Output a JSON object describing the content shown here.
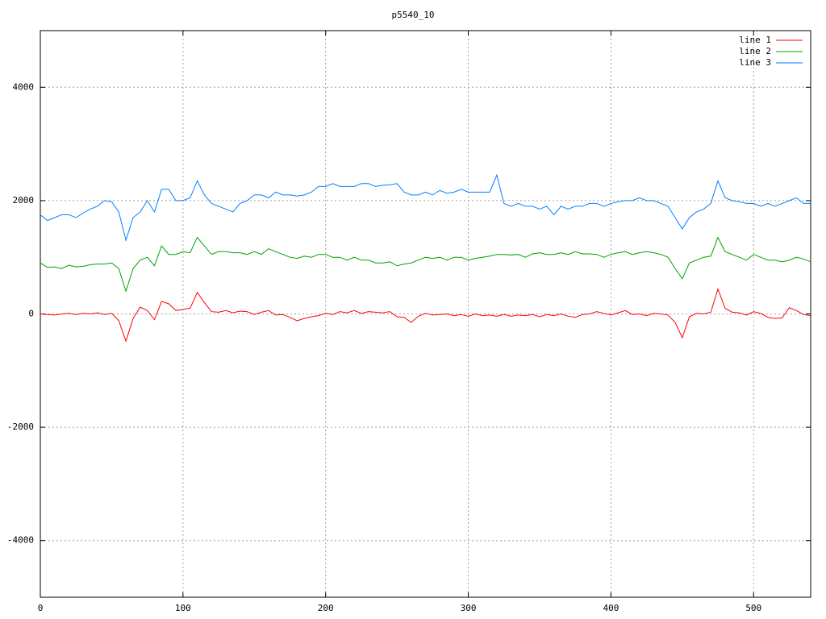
{
  "chart_data": {
    "type": "line",
    "title": "p5540_10",
    "xlim": [
      0,
      540
    ],
    "ylim": [
      -5000,
      5000
    ],
    "xticks": [
      0,
      100,
      200,
      300,
      400,
      500
    ],
    "yticks": [
      -4000,
      -2000,
      0,
      2000,
      4000
    ],
    "grid": true,
    "legend": "top-right",
    "x": [
      0,
      5,
      10,
      15,
      20,
      25,
      30,
      35,
      40,
      45,
      50,
      55,
      60,
      65,
      70,
      75,
      80,
      85,
      90,
      95,
      100,
      105,
      110,
      115,
      120,
      125,
      130,
      135,
      140,
      145,
      150,
      155,
      160,
      165,
      170,
      175,
      180,
      185,
      190,
      195,
      200,
      205,
      210,
      215,
      220,
      225,
      230,
      235,
      240,
      245,
      250,
      255,
      260,
      265,
      270,
      275,
      280,
      285,
      290,
      295,
      300,
      305,
      310,
      315,
      320,
      325,
      330,
      335,
      340,
      345,
      350,
      355,
      360,
      365,
      370,
      375,
      380,
      385,
      390,
      395,
      400,
      405,
      410,
      415,
      420,
      425,
      430,
      435,
      440,
      445,
      450,
      455,
      460,
      465,
      470,
      475,
      480,
      485,
      490,
      495,
      500,
      505,
      510,
      515,
      520,
      525,
      530,
      535,
      540
    ],
    "series": [
      {
        "name": "line 1",
        "color": "#ff0000",
        "values": [
          0,
          -10,
          -20,
          0,
          10,
          -10,
          10,
          0,
          20,
          -10,
          10,
          -120,
          -480,
          -80,
          120,
          60,
          -100,
          220,
          180,
          60,
          80,
          100,
          380,
          200,
          40,
          30,
          60,
          20,
          50,
          40,
          -10,
          30,
          60,
          -20,
          -10,
          -60,
          -120,
          -80,
          -50,
          -30,
          10,
          -10,
          40,
          20,
          60,
          10,
          40,
          30,
          20,
          40,
          -50,
          -60,
          -150,
          -40,
          10,
          -20,
          -10,
          0,
          -30,
          -10,
          -40,
          0,
          -30,
          -20,
          -40,
          -10,
          -40,
          -20,
          -30,
          -10,
          -50,
          -10,
          -30,
          0,
          -40,
          -60,
          -10,
          0,
          40,
          10,
          -20,
          20,
          60,
          -10,
          0,
          -30,
          10,
          0,
          -20,
          -150,
          -420,
          -50,
          10,
          0,
          30,
          440,
          100,
          30,
          20,
          -20,
          40,
          10,
          -60,
          -80,
          -70,
          110,
          60,
          -10,
          -30
        ]
      },
      {
        "name": "line 2",
        "color": "#00a000",
        "values": [
          900,
          820,
          830,
          800,
          860,
          830,
          840,
          870,
          880,
          880,
          900,
          800,
          400,
          800,
          950,
          1000,
          850,
          1200,
          1050,
          1050,
          1100,
          1080,
          1350,
          1200,
          1050,
          1100,
          1100,
          1080,
          1080,
          1050,
          1100,
          1050,
          1150,
          1100,
          1050,
          1000,
          980,
          1020,
          1000,
          1050,
          1050,
          1000,
          1000,
          950,
          1000,
          950,
          950,
          900,
          900,
          920,
          850,
          880,
          900,
          950,
          1000,
          980,
          1000,
          950,
          1000,
          1000,
          950,
          980,
          1000,
          1020,
          1050,
          1050,
          1040,
          1050,
          1000,
          1060,
          1080,
          1050,
          1050,
          1080,
          1050,
          1100,
          1060,
          1060,
          1050,
          1000,
          1050,
          1080,
          1100,
          1050,
          1080,
          1100,
          1080,
          1050,
          1000,
          800,
          620,
          900,
          950,
          1000,
          1020,
          1350,
          1100,
          1050,
          1000,
          950,
          1050,
          1000,
          950,
          950,
          920,
          950,
          1000,
          970,
          920
        ]
      },
      {
        "name": "line 3",
        "color": "#0080ff",
        "values": [
          1750,
          1650,
          1700,
          1750,
          1750,
          1700,
          1780,
          1850,
          1900,
          2000,
          1980,
          1800,
          1300,
          1700,
          1800,
          2000,
          1800,
          2200,
          2200,
          2000,
          2000,
          2050,
          2350,
          2100,
          1950,
          1900,
          1850,
          1800,
          1950,
          2000,
          2100,
          2100,
          2050,
          2150,
          2100,
          2100,
          2080,
          2100,
          2150,
          2250,
          2250,
          2300,
          2250,
          2250,
          2250,
          2300,
          2300,
          2250,
          2270,
          2280,
          2300,
          2150,
          2100,
          2100,
          2150,
          2100,
          2180,
          2130,
          2150,
          2200,
          2150,
          2150,
          2150,
          2150,
          2450,
          1950,
          1900,
          1950,
          1900,
          1900,
          1850,
          1900,
          1750,
          1900,
          1850,
          1900,
          1900,
          1950,
          1950,
          1900,
          1950,
          1980,
          2000,
          2000,
          2050,
          2000,
          2000,
          1950,
          1900,
          1700,
          1500,
          1700,
          1800,
          1850,
          1950,
          2350,
          2050,
          2000,
          1980,
          1950,
          1950,
          1900,
          1950,
          1900,
          1950,
          2000,
          2050,
          1950,
          1950
        ]
      }
    ]
  }
}
